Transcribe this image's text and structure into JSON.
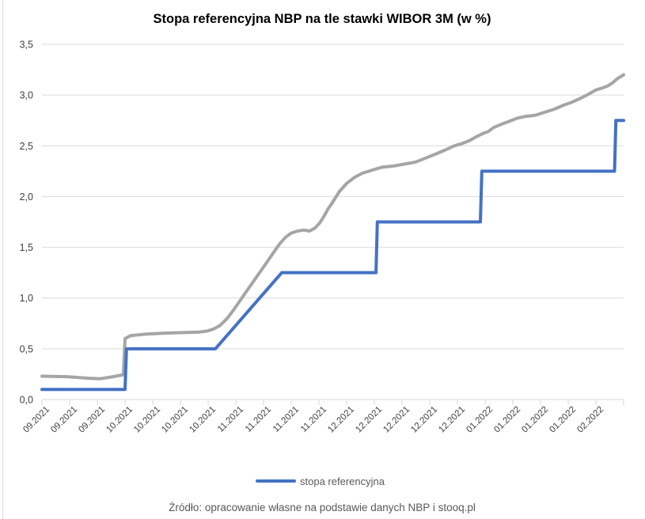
{
  "title": "Stopa referencyjna NBP na tle stawki WIBOR 3M (w %)",
  "source_note": "Źródło: opracowanie własne na podstawie danych NBP i stooq.pl",
  "legend": {
    "series_label": "stopa referencyjna"
  },
  "colors": {
    "reference_rate_line": "#4472C4",
    "wibor_line": "#A5A5A5",
    "gridline": "#D9D9D9",
    "axis_label_text": "#404040",
    "muted_text": "#595959",
    "title_text": "#000000"
  },
  "chart_data": {
    "type": "line",
    "title": "Stopa referencyjna NBP na tle stawki WIBOR 3M (w %)",
    "ylabel": "",
    "xlabel": "",
    "ylim": [
      0,
      3.5
    ],
    "ytick_step": 0.5,
    "ytick_labels": [
      "0,0",
      "0,5",
      "1,0",
      "1,5",
      "2,0",
      "2,5",
      "3,0",
      "3,5"
    ],
    "grid": true,
    "legend_position": "bottom",
    "x_range": [
      0,
      21
    ],
    "categories": [
      "09.2021",
      "09.2021",
      "09.2021",
      "10.2021",
      "10.2021",
      "10.2021",
      "10.2021",
      "11.2021",
      "11.2021",
      "11.2021",
      "11.2021",
      "12.2021",
      "12.2021",
      "12.2021",
      "12.2021",
      "12.2021",
      "01.2022",
      "01.2022",
      "01.2022",
      "01.2022",
      "02.2022"
    ],
    "series": [
      {
        "name": "WIBOR 3M",
        "color": "#A5A5A5",
        "in_legend": false,
        "points": [
          [
            0,
            0.23
          ],
          [
            0.91,
            0.225
          ],
          [
            1.69,
            0.21
          ],
          [
            2.11,
            0.205
          ],
          [
            2.57,
            0.225
          ],
          [
            2.94,
            0.245
          ],
          [
            3.0,
            0.6
          ],
          [
            3.2,
            0.63
          ],
          [
            3.77,
            0.645
          ],
          [
            4.49,
            0.655
          ],
          [
            5.2,
            0.66
          ],
          [
            5.69,
            0.665
          ],
          [
            5.97,
            0.675
          ],
          [
            6.2,
            0.695
          ],
          [
            6.43,
            0.73
          ],
          [
            6.69,
            0.8
          ],
          [
            6.91,
            0.88
          ],
          [
            7.14,
            0.97
          ],
          [
            7.37,
            1.06
          ],
          [
            7.6,
            1.15
          ],
          [
            7.83,
            1.24
          ],
          [
            8.09,
            1.34
          ],
          [
            8.34,
            1.44
          ],
          [
            8.57,
            1.53
          ],
          [
            8.8,
            1.6
          ],
          [
            9.0,
            1.64
          ],
          [
            9.23,
            1.66
          ],
          [
            9.46,
            1.67
          ],
          [
            9.66,
            1.66
          ],
          [
            9.86,
            1.69
          ],
          [
            10.03,
            1.74
          ],
          [
            10.17,
            1.8
          ],
          [
            10.31,
            1.87
          ],
          [
            10.51,
            1.95
          ],
          [
            10.74,
            2.05
          ],
          [
            11.0,
            2.13
          ],
          [
            11.29,
            2.19
          ],
          [
            11.57,
            2.23
          ],
          [
            11.91,
            2.26
          ],
          [
            12.29,
            2.29
          ],
          [
            12.69,
            2.3
          ],
          [
            13.09,
            2.32
          ],
          [
            13.49,
            2.34
          ],
          [
            13.86,
            2.38
          ],
          [
            14.23,
            2.42
          ],
          [
            14.57,
            2.46
          ],
          [
            14.89,
            2.5
          ],
          [
            15.14,
            2.52
          ],
          [
            15.43,
            2.55
          ],
          [
            15.69,
            2.59
          ],
          [
            15.91,
            2.62
          ],
          [
            16.11,
            2.64
          ],
          [
            16.31,
            2.68
          ],
          [
            16.57,
            2.71
          ],
          [
            16.86,
            2.74
          ],
          [
            17.14,
            2.77
          ],
          [
            17.46,
            2.79
          ],
          [
            17.8,
            2.8
          ],
          [
            18.14,
            2.83
          ],
          [
            18.49,
            2.86
          ],
          [
            18.83,
            2.9
          ],
          [
            19.14,
            2.93
          ],
          [
            19.46,
            2.97
          ],
          [
            19.74,
            3.01
          ],
          [
            20.0,
            3.05
          ],
          [
            20.23,
            3.07
          ],
          [
            20.43,
            3.09
          ],
          [
            20.6,
            3.12
          ],
          [
            20.77,
            3.16
          ],
          [
            21,
            3.2
          ]
        ]
      },
      {
        "name": "stopa referencyjna",
        "color": "#4472C4",
        "in_legend": true,
        "points": [
          [
            0,
            0.1
          ],
          [
            3.0,
            0.1
          ],
          [
            3.05,
            0.5
          ],
          [
            6.26,
            0.5
          ],
          [
            8.66,
            1.25
          ],
          [
            12.06,
            1.25
          ],
          [
            12.11,
            1.75
          ],
          [
            15.83,
            1.75
          ],
          [
            15.88,
            2.25
          ],
          [
            20.67,
            2.25
          ],
          [
            20.72,
            2.75
          ],
          [
            21,
            2.75
          ]
        ]
      }
    ]
  }
}
